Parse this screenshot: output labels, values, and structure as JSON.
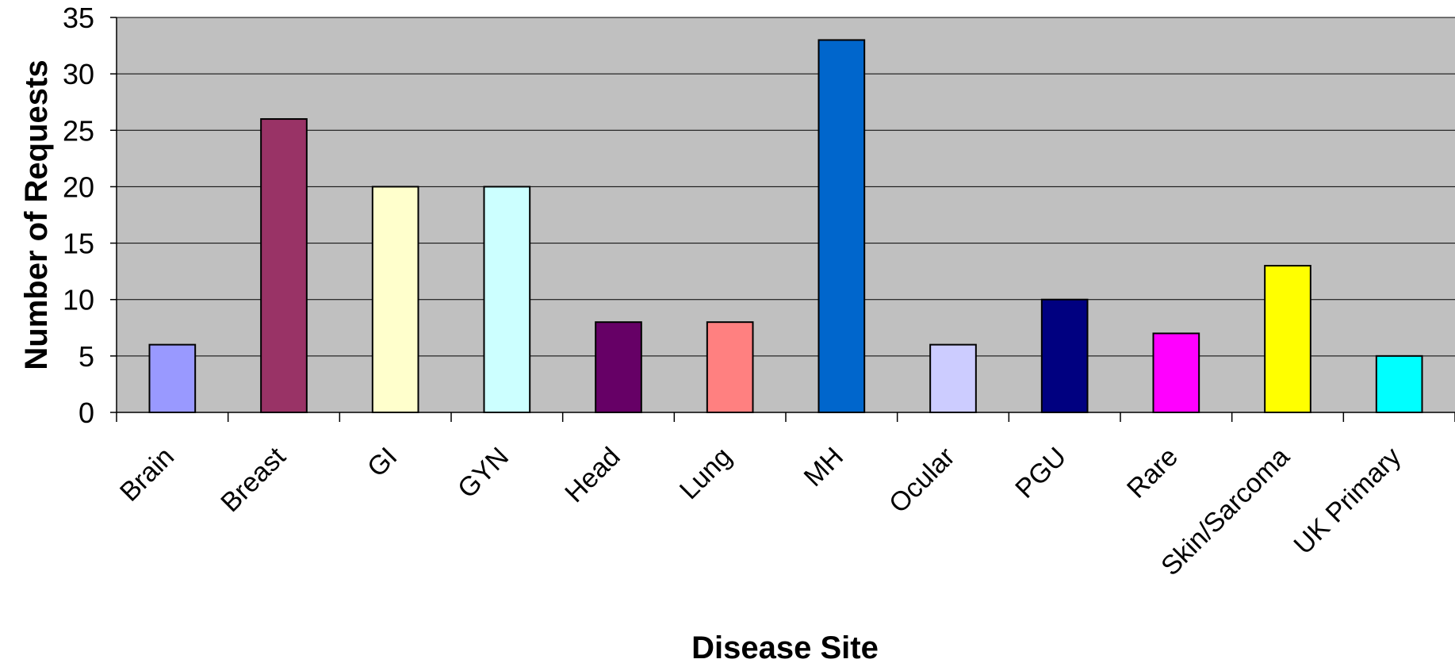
{
  "chart_data": {
    "type": "bar",
    "title": "",
    "xlabel": "Disease Site",
    "ylabel": "Number of Requests",
    "categories": [
      "Brain",
      "Breast",
      "GI",
      "GYN",
      "Head",
      "Lung",
      "MH",
      "Ocular",
      "PGU",
      "Rare",
      "Skin/Sarcoma",
      "UK Primary"
    ],
    "values": [
      6,
      26,
      20,
      20,
      8,
      8,
      33,
      6,
      10,
      7,
      13,
      5
    ],
    "colors": [
      "#9999FF",
      "#993366",
      "#FFFFCC",
      "#CCFFFF",
      "#660066",
      "#FF8080",
      "#0066CC",
      "#CCCCFF",
      "#000080",
      "#FF00FF",
      "#FFFF00",
      "#00FFFF"
    ],
    "ylim": [
      0,
      35
    ],
    "yticks": [
      0,
      5,
      10,
      15,
      20,
      25,
      30,
      35
    ],
    "grid": true,
    "plot_background": "#C0C0C0",
    "legend": "none"
  }
}
